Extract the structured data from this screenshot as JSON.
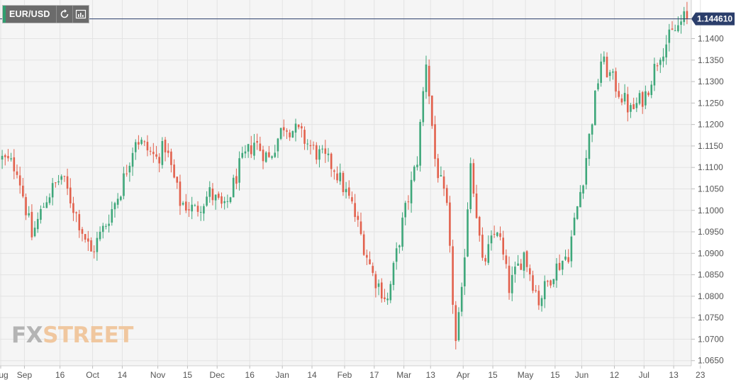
{
  "toolbar": {
    "symbol": "EUR/USD",
    "refresh_icon": "refresh-icon",
    "indicators_icon": "indicators-icon"
  },
  "watermark": {
    "part1": "FX",
    "part2": "STREET"
  },
  "colors": {
    "up": "#3ea77a",
    "down": "#e2604c",
    "current_price_line": "#2b3e6b",
    "current_price_label": "#2b3e6b",
    "plot_background": "#f5f5f5",
    "grid": "#e3e3e3"
  },
  "chart_data": {
    "type": "candlestick",
    "symbol": "EUR/USD",
    "current_price": 1.14461,
    "current_price_label": "1.144610",
    "ylim": [
      1.0638,
      1.149
    ],
    "y_ticks": [
      1.065,
      1.07,
      1.075,
      1.08,
      1.085,
      1.09,
      1.095,
      1.1,
      1.105,
      1.11,
      1.115,
      1.12,
      1.125,
      1.13,
      1.135,
      1.14
    ],
    "y_tick_labels": [
      "1.0650",
      "1.0700",
      "1.0750",
      "1.0800",
      "1.0850",
      "1.0900",
      "1.0950",
      "1.1000",
      "1.1050",
      "1.1100",
      "1.1150",
      "1.1200",
      "1.1250",
      "1.1300",
      "1.1350",
      "1.1400"
    ],
    "x_tick_labels": [
      "Aug",
      "Sep",
      "16",
      "Oct",
      "14",
      "Nov",
      "15",
      "Dec",
      "16",
      "Jan",
      "14",
      "Feb",
      "17",
      "Mar",
      "13",
      "Apr",
      "15",
      "May",
      "15",
      "Jun",
      "12",
      "Jul",
      "13",
      "23"
    ],
    "x_tick_indices": [
      0,
      8,
      20,
      31,
      41,
      53,
      63,
      73,
      84,
      95,
      105,
      116,
      126,
      136,
      145,
      156,
      166,
      177,
      187,
      196,
      207,
      217,
      227,
      236
    ],
    "candle_count": 232,
    "price_path": [
      [
        0,
        1.112
      ],
      [
        5,
        1.11
      ],
      [
        10,
        1.094
      ],
      [
        15,
        1.103
      ],
      [
        20,
        1.108
      ],
      [
        25,
        1.099
      ],
      [
        30,
        1.09
      ],
      [
        35,
        1.097
      ],
      [
        40,
        1.105
      ],
      [
        45,
        1.117
      ],
      [
        52,
        1.112
      ],
      [
        55,
        1.115
      ],
      [
        60,
        1.102
      ],
      [
        65,
        1.1
      ],
      [
        70,
        1.104
      ],
      [
        75,
        1.1
      ],
      [
        80,
        1.11
      ],
      [
        85,
        1.116
      ],
      [
        90,
        1.112
      ],
      [
        95,
        1.12
      ],
      [
        100,
        1.118
      ],
      [
        105,
        1.114
      ],
      [
        112,
        1.11
      ],
      [
        118,
        1.101
      ],
      [
        125,
        1.085
      ],
      [
        130,
        1.079
      ],
      [
        135,
        1.097
      ],
      [
        140,
        1.112
      ],
      [
        143,
        1.135
      ],
      [
        146,
        1.112
      ],
      [
        150,
        1.1
      ],
      [
        153,
        1.069
      ],
      [
        155,
        1.08
      ],
      [
        158,
        1.112
      ],
      [
        162,
        1.087
      ],
      [
        167,
        1.096
      ],
      [
        171,
        1.082
      ],
      [
        176,
        1.09
      ],
      [
        181,
        1.079
      ],
      [
        186,
        1.086
      ],
      [
        191,
        1.09
      ],
      [
        196,
        1.108
      ],
      [
        202,
        1.135
      ],
      [
        207,
        1.129
      ],
      [
        212,
        1.123
      ],
      [
        217,
        1.127
      ],
      [
        222,
        1.137
      ],
      [
        226,
        1.141
      ],
      [
        230,
        1.1446
      ]
    ]
  }
}
